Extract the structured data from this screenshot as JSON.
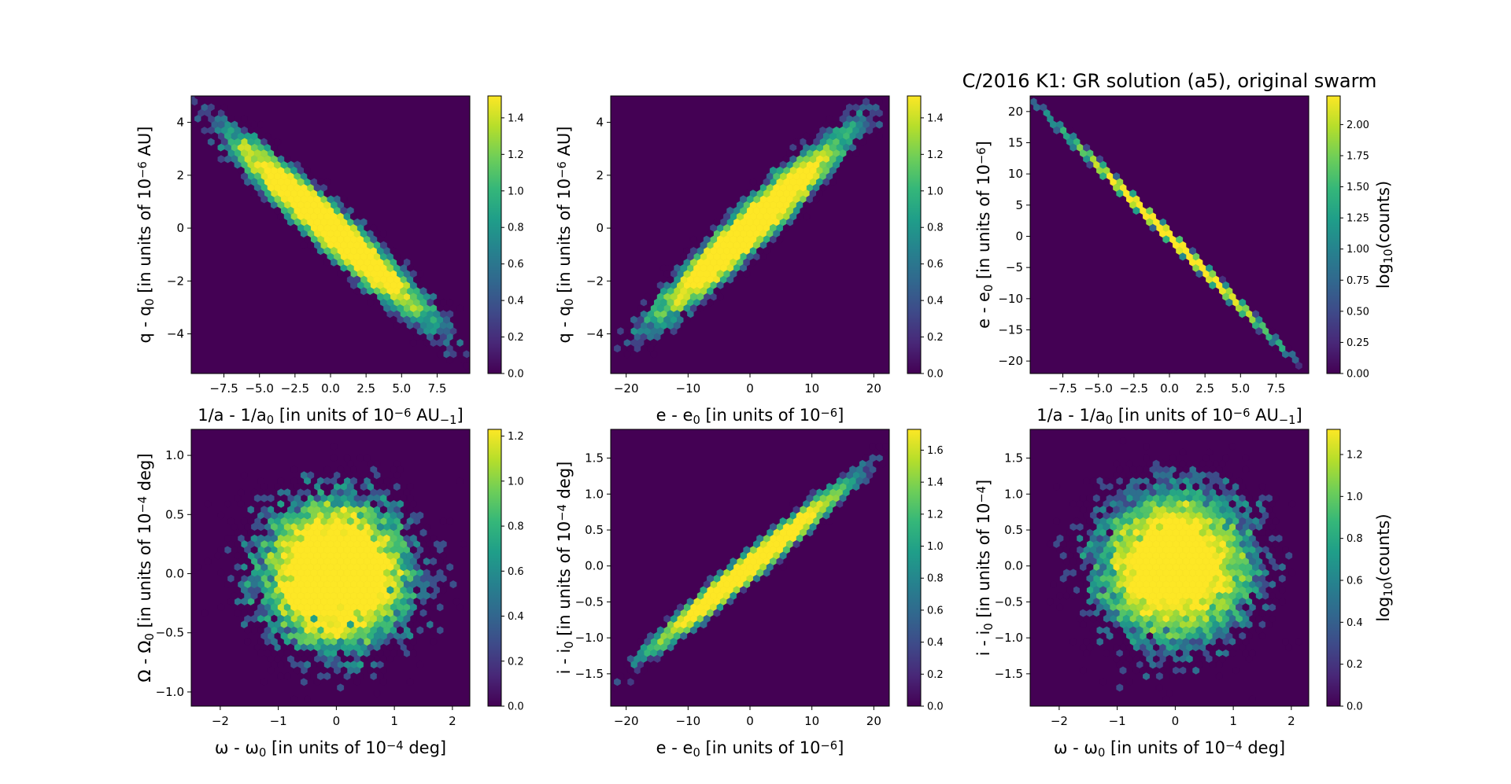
{
  "figure": {
    "title": "C/2016 K1: GR solution (a5),  original swarm",
    "colormap": "viridis",
    "background_color": "#440154"
  },
  "chart_data": [
    {
      "type": "heatmap",
      "subtype": "hexbin",
      "panel": "top-left",
      "xlabel": [
        "1/a - 1/a",
        "0",
        " [in units of 10",
        "−6",
        " AU",
        "−1",
        "]"
      ],
      "ylabel": [
        "q - q",
        "0",
        " [in units of 10",
        "−6",
        " AU]"
      ],
      "xlim": [
        -9.8,
        9.8
      ],
      "ylim": [
        -5.5,
        5.0
      ],
      "xticks": [
        -7.5,
        -5.0,
        -2.5,
        0.0,
        2.5,
        5.0,
        7.5
      ],
      "xtick_labels": [
        "−7.5",
        "−5.0",
        "−2.5",
        "0.0",
        "2.5",
        "5.0",
        "7.5"
      ],
      "yticks": [
        -4,
        -2,
        0,
        2,
        4
      ],
      "ytick_labels": [
        "−4",
        "−2",
        "0",
        "2",
        "4"
      ],
      "distribution": {
        "x_sd": 3.1,
        "y_sd": 1.55,
        "correlation": -0.96,
        "n_points": 10000,
        "seed": 11
      },
      "colorbar": {
        "label": [],
        "range": [
          0.0,
          1.52
        ],
        "ticks": [
          0.0,
          0.2,
          0.4,
          0.6,
          0.8,
          1.0,
          1.2,
          1.4
        ],
        "tick_labels": [
          "0.0",
          "0.2",
          "0.4",
          "0.6",
          "0.8",
          "1.0",
          "1.2",
          "1.4"
        ]
      }
    },
    {
      "type": "heatmap",
      "subtype": "hexbin",
      "panel": "top-middle",
      "xlabel": [
        "e - e",
        "0",
        " [in units of 10",
        "−6",
        "]"
      ],
      "ylabel": [
        "q - q",
        "0",
        " [in units of 10",
        "−6",
        " AU]"
      ],
      "xlim": [
        -22.5,
        22.5
      ],
      "ylim": [
        -5.5,
        5.0
      ],
      "xticks": [
        -20,
        -10,
        0,
        10,
        20
      ],
      "xtick_labels": [
        "−20",
        "−10",
        "0",
        "10",
        "20"
      ],
      "yticks": [
        -4,
        -2,
        0,
        2,
        4
      ],
      "ytick_labels": [
        "−4",
        "−2",
        "0",
        "2",
        "4"
      ],
      "distribution": {
        "x_sd": 6.8,
        "y_sd": 1.55,
        "correlation": 0.96,
        "n_points": 10000,
        "seed": 23
      },
      "colorbar": {
        "label": [],
        "range": [
          0.0,
          1.52
        ],
        "ticks": [
          0.0,
          0.2,
          0.4,
          0.6,
          0.8,
          1.0,
          1.2,
          1.4
        ],
        "tick_labels": [
          "0.0",
          "0.2",
          "0.4",
          "0.6",
          "0.8",
          "1.0",
          "1.2",
          "1.4"
        ]
      }
    },
    {
      "type": "heatmap",
      "subtype": "hexbin",
      "panel": "top-right",
      "xlabel": [
        "1/a - 1/a",
        "0",
        " [in units of 10",
        "−6",
        " AU",
        "−1",
        "]"
      ],
      "ylabel": [
        "e - e",
        "0",
        " [in units of 10",
        "−6",
        "]"
      ],
      "xlim": [
        -9.8,
        9.8
      ],
      "ylim": [
        -22.0,
        22.5
      ],
      "xticks": [
        -7.5,
        -5.0,
        -2.5,
        0.0,
        2.5,
        5.0,
        7.5
      ],
      "xtick_labels": [
        "−7.5",
        "−5.0",
        "−2.5",
        "0.0",
        "2.5",
        "5.0",
        "7.5"
      ],
      "yticks": [
        -20,
        -15,
        -10,
        -5,
        0,
        5,
        10,
        15,
        20
      ],
      "ytick_labels": [
        "−20",
        "−15",
        "−10",
        "−5",
        "0",
        "5",
        "10",
        "15",
        "20"
      ],
      "distribution": {
        "x_sd": 3.1,
        "y_sd": 7.0,
        "correlation": -0.9995,
        "n_points": 10000,
        "seed": 37
      },
      "colorbar": {
        "label": [
          "log",
          "10",
          "(counts)"
        ],
        "range": [
          0.0,
          2.23
        ],
        "ticks": [
          0.0,
          0.25,
          0.5,
          0.75,
          1.0,
          1.25,
          1.5,
          1.75,
          2.0
        ],
        "tick_labels": [
          "0.00",
          "0.25",
          "0.50",
          "0.75",
          "1.00",
          "1.25",
          "1.50",
          "1.75",
          "2.00"
        ]
      }
    },
    {
      "type": "heatmap",
      "subtype": "hexbin",
      "panel": "bottom-left",
      "xlabel": [
        "ω - ω",
        "0",
        " [in units of 10",
        "−4",
        " deg]"
      ],
      "ylabel": [
        "Ω - Ω",
        "0",
        " [in units of 10",
        "−4",
        " deg]"
      ],
      "xlim": [
        -2.5,
        2.3
      ],
      "ylim": [
        -1.12,
        1.22
      ],
      "xticks": [
        -2,
        -1,
        0,
        1,
        2
      ],
      "xtick_labels": [
        "−2",
        "−1",
        "0",
        "1",
        "2"
      ],
      "yticks": [
        -1.0,
        -0.5,
        0.0,
        0.5,
        1.0
      ],
      "ytick_labels": [
        "−1.0",
        "−0.5",
        "0.0",
        "0.5",
        "1.0"
      ],
      "distribution": {
        "x_sd": 0.62,
        "y_sd": 0.3,
        "correlation": 0.0,
        "n_points": 10000,
        "seed": 41
      },
      "colorbar": {
        "label": [],
        "range": [
          0.0,
          1.23
        ],
        "ticks": [
          0.0,
          0.2,
          0.4,
          0.6,
          0.8,
          1.0,
          1.2
        ],
        "tick_labels": [
          "0.0",
          "0.2",
          "0.4",
          "0.6",
          "0.8",
          "1.0",
          "1.2"
        ]
      }
    },
    {
      "type": "heatmap",
      "subtype": "hexbin",
      "panel": "bottom-middle",
      "xlabel": [
        "e - e",
        "0",
        " [in units of 10",
        "−6",
        "]"
      ],
      "ylabel": [
        "i - i",
        "0",
        " [in units of 10",
        "−4",
        " deg]"
      ],
      "xlim": [
        -22.5,
        22.5
      ],
      "ylim": [
        -1.95,
        1.9
      ],
      "xticks": [
        -20,
        -10,
        0,
        10,
        20
      ],
      "xtick_labels": [
        "−20",
        "−10",
        "0",
        "10",
        "20"
      ],
      "yticks": [
        -1.5,
        -1.0,
        -0.5,
        0.0,
        0.5,
        1.0,
        1.5
      ],
      "ytick_labels": [
        "−1.5",
        "−1.0",
        "−0.5",
        "0.0",
        "0.5",
        "1.0",
        "1.5"
      ],
      "distribution": {
        "x_sd": 6.8,
        "y_sd": 0.5,
        "correlation": 0.985,
        "n_points": 10000,
        "seed": 53
      },
      "colorbar": {
        "label": [],
        "range": [
          0.0,
          1.73
        ],
        "ticks": [
          0.0,
          0.2,
          0.4,
          0.6,
          0.8,
          1.0,
          1.2,
          1.4,
          1.6
        ],
        "tick_labels": [
          "0.0",
          "0.2",
          "0.4",
          "0.6",
          "0.8",
          "1.0",
          "1.2",
          "1.4",
          "1.6"
        ]
      }
    },
    {
      "type": "heatmap",
      "subtype": "hexbin",
      "panel": "bottom-right",
      "xlabel": [
        "ω - ω",
        "0",
        " [in units of 10",
        "−4",
        " deg]"
      ],
      "ylabel": [
        "i - i",
        "0",
        " [in units of 10",
        "−4",
        "]"
      ],
      "xlim": [
        -2.5,
        2.3
      ],
      "ylim": [
        -1.95,
        1.9
      ],
      "xticks": [
        -2,
        -1,
        0,
        1,
        2
      ],
      "xtick_labels": [
        "−2",
        "−1",
        "0",
        "1",
        "2"
      ],
      "yticks": [
        -1.5,
        -1.0,
        -0.5,
        0.0,
        0.5,
        1.0,
        1.5
      ],
      "ytick_labels": [
        "−1.5",
        "−1.0",
        "−0.5",
        "0.0",
        "0.5",
        "1.0",
        "1.5"
      ],
      "distribution": {
        "x_sd": 0.62,
        "y_sd": 0.5,
        "correlation": 0.0,
        "n_points": 10000,
        "seed": 67
      },
      "colorbar": {
        "label": [
          "log",
          "10",
          "(counts)"
        ],
        "range": [
          0.0,
          1.32
        ],
        "ticks": [
          0.0,
          0.2,
          0.4,
          0.6,
          0.8,
          1.0,
          1.2
        ],
        "tick_labels": [
          "0.0",
          "0.2",
          "0.4",
          "0.6",
          "0.8",
          "1.0",
          "1.2"
        ]
      }
    }
  ]
}
